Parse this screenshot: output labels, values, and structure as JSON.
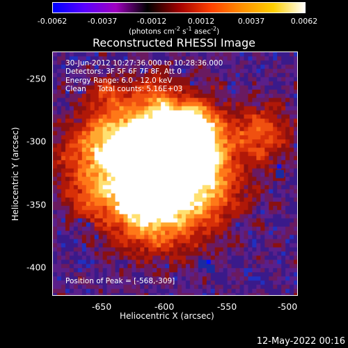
{
  "colorbar": {
    "ticks": [
      "-0.0062",
      "-0.0037",
      "-0.0012",
      "0.0012",
      "0.0037",
      "0.0062"
    ],
    "units_prefix": "(photons cm",
    "units_exp1": "-2",
    "units_mid": " s",
    "units_exp2": "-1",
    "units_mid2": " asec",
    "units_exp3": "-2",
    "units_suffix": ")",
    "gradient_colors": [
      "#0000ff",
      "#5a00ff",
      "#a000c0",
      "#000000",
      "#a00000",
      "#ff4000",
      "#ff9000",
      "#ffd000",
      "#ffffff"
    ]
  },
  "title": "Reconstructed RHESSI Image",
  "annotations": {
    "time_range": "30-Jun-2012 10:27:36.000 to 10:28:36.000",
    "detectors": "Detectors: 3F 5F 6F 7F 8F, Att 0",
    "energy": "Energy Range: 6.0 - 12.0 keV",
    "clean_counts": "Clean     Total counts: 5.16E+03",
    "peak": "Position of Peak = [-568,-309]"
  },
  "axes": {
    "xlabel": "Heliocentric X (arcsec)",
    "ylabel": "Heliocentric Y (arcsec)",
    "xticks": [
      "-650",
      "-600",
      "-550",
      "-500"
    ],
    "yticks": [
      "-250",
      "-300",
      "-350",
      "-400"
    ]
  },
  "timestamp": "12-May-2022 00:16",
  "image_palette": {
    "background": "#5a1f8a",
    "dark_purple": "#3b1060",
    "blue": "#1a2aa0",
    "core": "#ffffff"
  }
}
